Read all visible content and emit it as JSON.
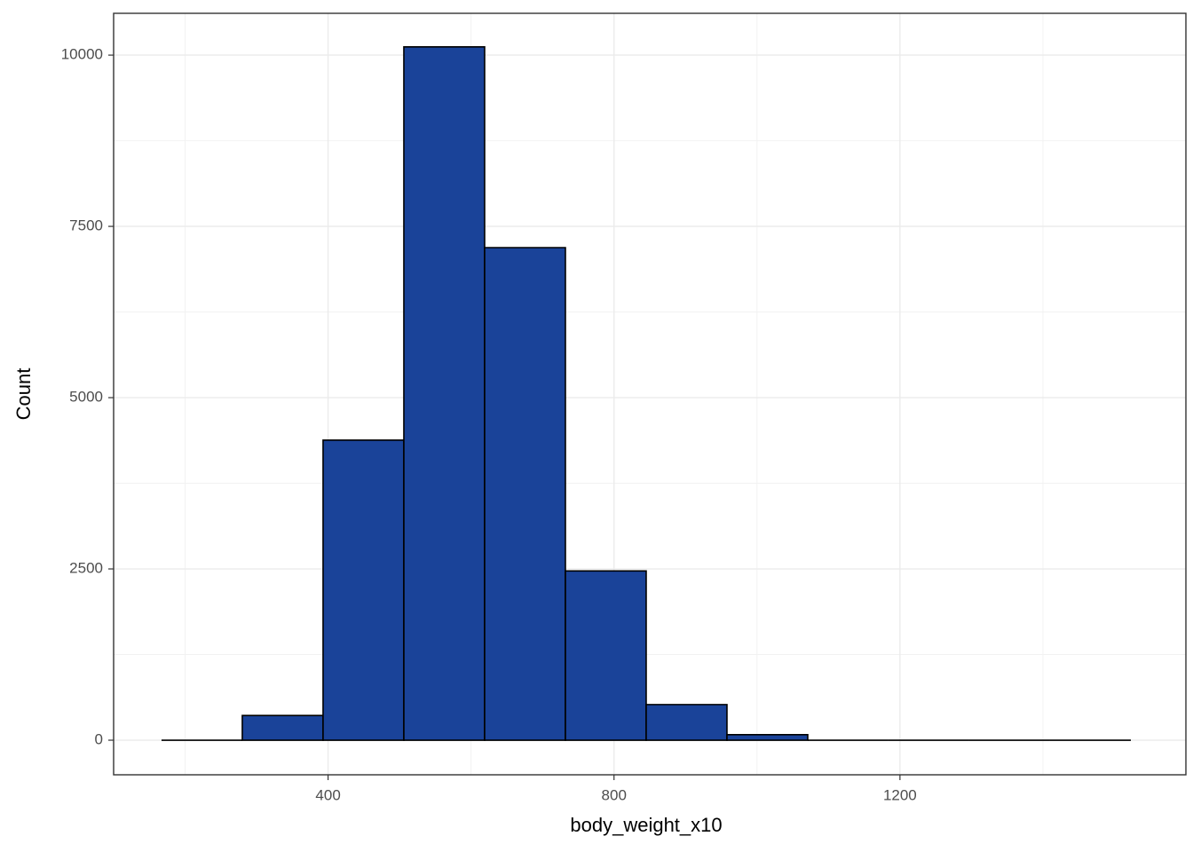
{
  "chart_data": {
    "type": "histogram",
    "x_label": "body_weight_x10",
    "y_label": "Count",
    "bins": [
      167,
      280,
      393,
      506,
      619,
      732,
      845,
      958,
      1071,
      1184,
      1297,
      1410,
      1523
    ],
    "values": [
      0,
      360,
      4380,
      10120,
      7190,
      2470,
      520,
      80,
      0,
      0,
      0,
      0
    ],
    "color": "#1a4399",
    "xlim": [
      100,
      1600
    ],
    "xticks": [
      400,
      800,
      1200
    ],
    "ylim": [
      -505,
      10610
    ],
    "yticks": [
      0,
      2500,
      5000,
      7500,
      10000
    ],
    "grid": true
  }
}
